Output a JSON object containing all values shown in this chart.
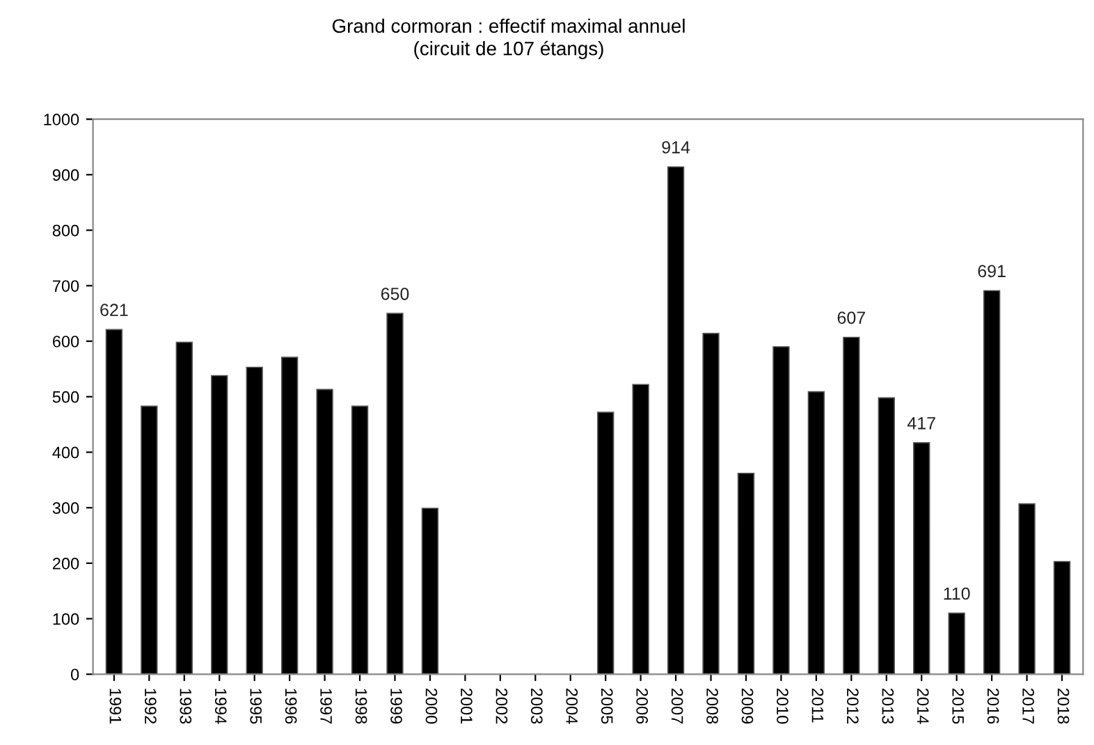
{
  "chart_data": {
    "type": "bar",
    "title": "Grand cormoran : effectif maximal annuel\n(circuit de 107 étangs)",
    "categories": [
      "1991",
      "1992",
      "1993",
      "1994",
      "1995",
      "1996",
      "1997",
      "1998",
      "1999",
      "2000",
      "2001",
      "2002",
      "2003",
      "2004",
      "2005",
      "2006",
      "2007",
      "2008",
      "2009",
      "2010",
      "2011",
      "2012",
      "2013",
      "2014",
      "2015",
      "2016",
      "2017",
      "2018"
    ],
    "values": [
      621,
      483,
      598,
      538,
      553,
      571,
      513,
      483,
      650,
      299,
      null,
      null,
      null,
      null,
      472,
      522,
      914,
      614,
      362,
      590,
      509,
      607,
      498,
      417,
      110,
      691,
      307,
      203
    ],
    "value_labels": [
      "621",
      null,
      null,
      null,
      null,
      null,
      null,
      null,
      "650",
      null,
      null,
      null,
      null,
      null,
      null,
      null,
      "914",
      null,
      null,
      null,
      null,
      "607",
      null,
      "417",
      "110",
      "691",
      null,
      null
    ],
    "color": "#000000",
    "ylim": [
      0,
      1000
    ],
    "yticks": [
      0,
      100,
      200,
      300,
      400,
      500,
      600,
      700,
      800,
      900,
      1000
    ],
    "grid": false,
    "legend": false
  }
}
